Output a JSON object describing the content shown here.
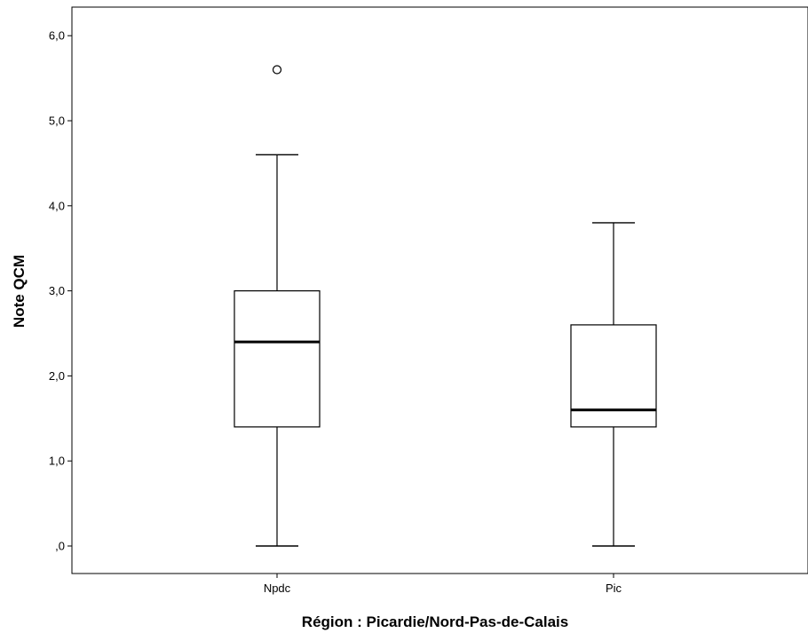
{
  "chart_data": {
    "type": "box",
    "xlabel": "Région : Picardie/Nord-Pas-de-Calais",
    "ylabel": "Note QCM",
    "ylim": [
      -0.3,
      6.35
    ],
    "yticks": [
      0,
      1,
      2,
      3,
      4,
      5,
      6
    ],
    "ytick_labels": [
      ",0",
      "1,0",
      "2,0",
      "3,0",
      "4,0",
      "5,0",
      "6,0"
    ],
    "categories": [
      "Npdc",
      "Pic"
    ],
    "boxes": [
      {
        "label": "Npdc",
        "min": 0.0,
        "q1": 1.4,
        "median": 2.4,
        "q3": 3.0,
        "max": 4.6,
        "outliers": [
          5.6
        ]
      },
      {
        "label": "Pic",
        "min": 0.0,
        "q1": 1.4,
        "median": 1.6,
        "q3": 2.6,
        "max": 3.8,
        "outliers": []
      }
    ],
    "grid": false,
    "legend": "none"
  }
}
